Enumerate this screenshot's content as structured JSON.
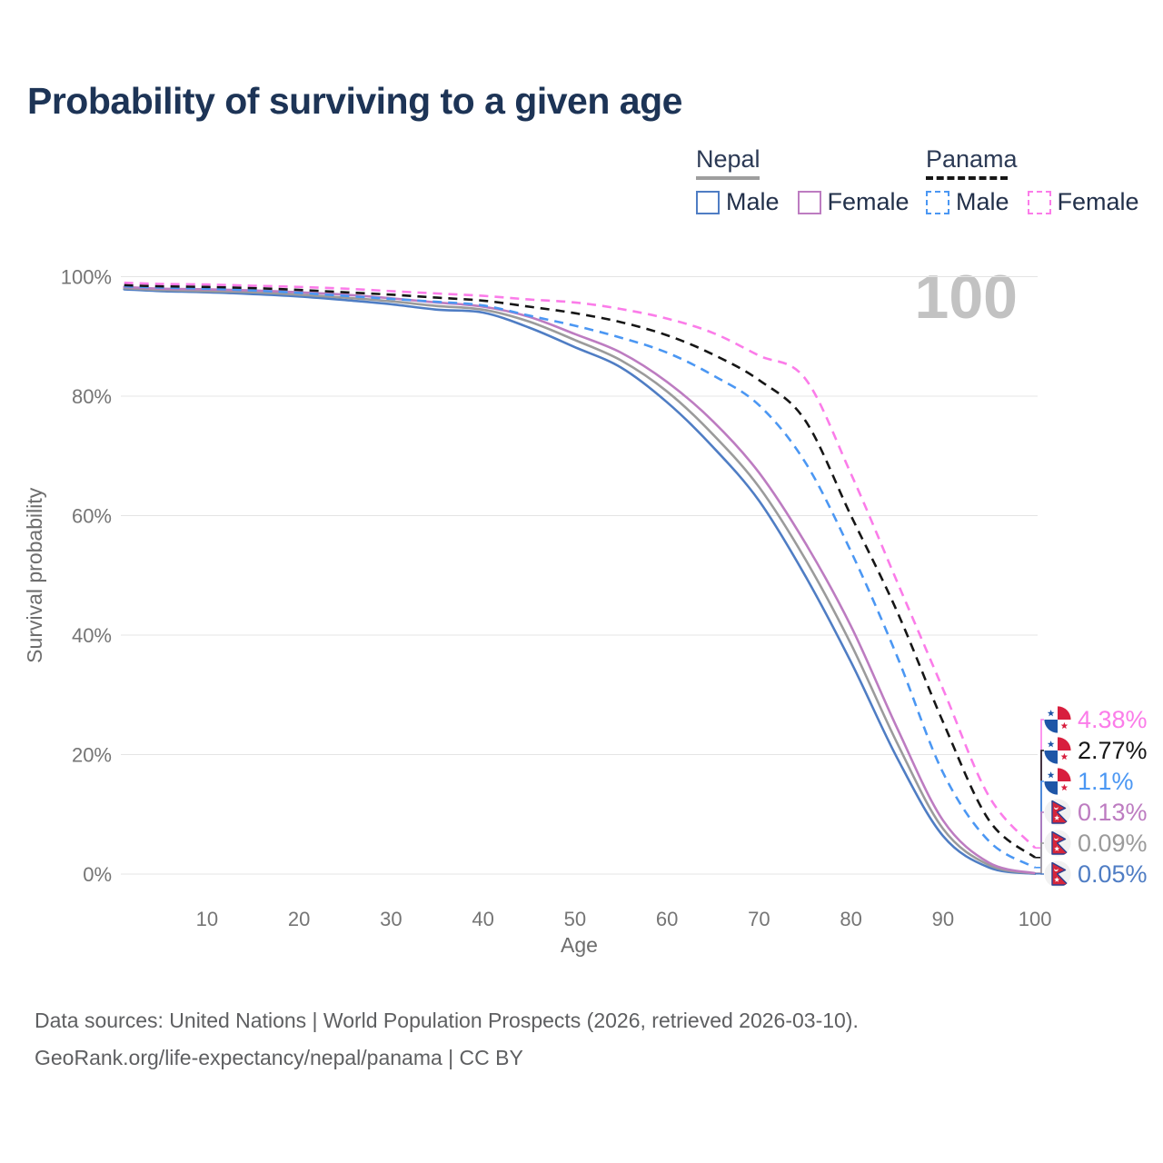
{
  "title": "Probability of surviving to a given age",
  "age_indicator": "100",
  "legend": {
    "groups": [
      {
        "country": "Nepal",
        "line_style": "solid",
        "underline_color": "#9e9e9e",
        "items": [
          {
            "label": "Male",
            "color": "#4f7dc4",
            "dashed": false
          },
          {
            "label": "Female",
            "color": "#bd7cc1",
            "dashed": false
          }
        ]
      },
      {
        "country": "Panama",
        "line_style": "dashed",
        "underline_color": "#161616",
        "items": [
          {
            "label": "Male",
            "color": "#4b97f3",
            "dashed": true
          },
          {
            "label": "Female",
            "color": "#fb7ce9",
            "dashed": true
          }
        ]
      }
    ]
  },
  "chart_data": {
    "type": "line",
    "title": "Probability of surviving to a given age",
    "xlabel": "Age",
    "ylabel": "Survival probability",
    "xlim": [
      0,
      100
    ],
    "ylim": [
      0,
      100
    ],
    "grid": "horizontal",
    "legend_position": "top-right",
    "x_ticks": [
      10,
      20,
      30,
      40,
      50,
      60,
      70,
      80,
      90,
      100
    ],
    "y_ticks": [
      {
        "v": 0,
        "label": "0%"
      },
      {
        "v": 20,
        "label": "20%"
      },
      {
        "v": 40,
        "label": "40%"
      },
      {
        "v": 60,
        "label": "60%"
      },
      {
        "v": 80,
        "label": "80%"
      },
      {
        "v": 100,
        "label": "100%"
      }
    ],
    "x": [
      1,
      5,
      10,
      15,
      20,
      25,
      30,
      35,
      40,
      45,
      50,
      55,
      60,
      65,
      70,
      75,
      80,
      85,
      90,
      95,
      100
    ],
    "series": [
      {
        "name": "Nepal — Male",
        "country": "Nepal",
        "color": "#4f7dc4",
        "dash": "solid",
        "end_label": "0.05%",
        "values": [
          97.9,
          97.6,
          97.4,
          97.1,
          96.7,
          96.1,
          95.4,
          94.5,
          94.0,
          91.5,
          88.2,
          84.8,
          79.0,
          71.5,
          62.5,
          50.0,
          35.5,
          19.5,
          6.4,
          1.1,
          0.05
        ]
      },
      {
        "name": "Nepal — All",
        "country": "Nepal",
        "color": "#9b9b9b",
        "dash": "solid",
        "end_label": "0.09%",
        "values": [
          98.1,
          97.8,
          97.6,
          97.4,
          97.0,
          96.5,
          95.9,
          95.1,
          94.5,
          92.5,
          89.4,
          86.0,
          80.8,
          73.6,
          64.8,
          52.8,
          38.5,
          22.0,
          7.6,
          1.5,
          0.09
        ]
      },
      {
        "name": "Nepal — Female",
        "country": "Nepal",
        "color": "#bd7cc1",
        "dash": "solid",
        "end_label": "0.13%",
        "values": [
          98.3,
          98.0,
          97.9,
          97.7,
          97.4,
          97.0,
          96.4,
          95.7,
          95.0,
          93.3,
          90.4,
          87.3,
          82.4,
          75.8,
          67.2,
          55.5,
          41.5,
          24.5,
          9.0,
          1.9,
          0.13
        ]
      },
      {
        "name": "Panama — Male",
        "country": "Panama",
        "color": "#4b97f3",
        "dash": "dashed",
        "end_label": "1.1%",
        "values": [
          98.4,
          98.2,
          98.0,
          97.7,
          97.3,
          96.8,
          96.3,
          95.8,
          95.2,
          93.5,
          91.8,
          89.8,
          87.3,
          83.5,
          78.5,
          69.0,
          54.0,
          36.5,
          17.0,
          5.5,
          1.1
        ]
      },
      {
        "name": "Panama — All",
        "country": "Panama",
        "color": "#161616",
        "dash": "dashed",
        "end_label": "2.77%",
        "values": [
          98.6,
          98.4,
          98.3,
          98.1,
          97.8,
          97.4,
          97.0,
          96.5,
          96.0,
          95.0,
          93.9,
          92.4,
          90.2,
          87.0,
          82.7,
          76.0,
          60.0,
          44.0,
          25.5,
          9.0,
          2.77
        ]
      },
      {
        "name": "Panama — Female",
        "country": "Panama",
        "color": "#fb7ce9",
        "dash": "dashed",
        "end_label": "4.38%",
        "values": [
          99.0,
          98.8,
          98.7,
          98.5,
          98.3,
          98.0,
          97.6,
          97.2,
          96.8,
          96.2,
          95.7,
          94.6,
          93.0,
          90.6,
          86.8,
          83.0,
          67.0,
          49.0,
          31.0,
          13.0,
          4.38
        ]
      }
    ]
  },
  "footer": {
    "line1": "Data sources: United Nations | World Population Prospects (2026, retrieved 2026-03-10).",
    "line2": "GeoRank.org/life-expectancy/nepal/panama | CC BY"
  }
}
